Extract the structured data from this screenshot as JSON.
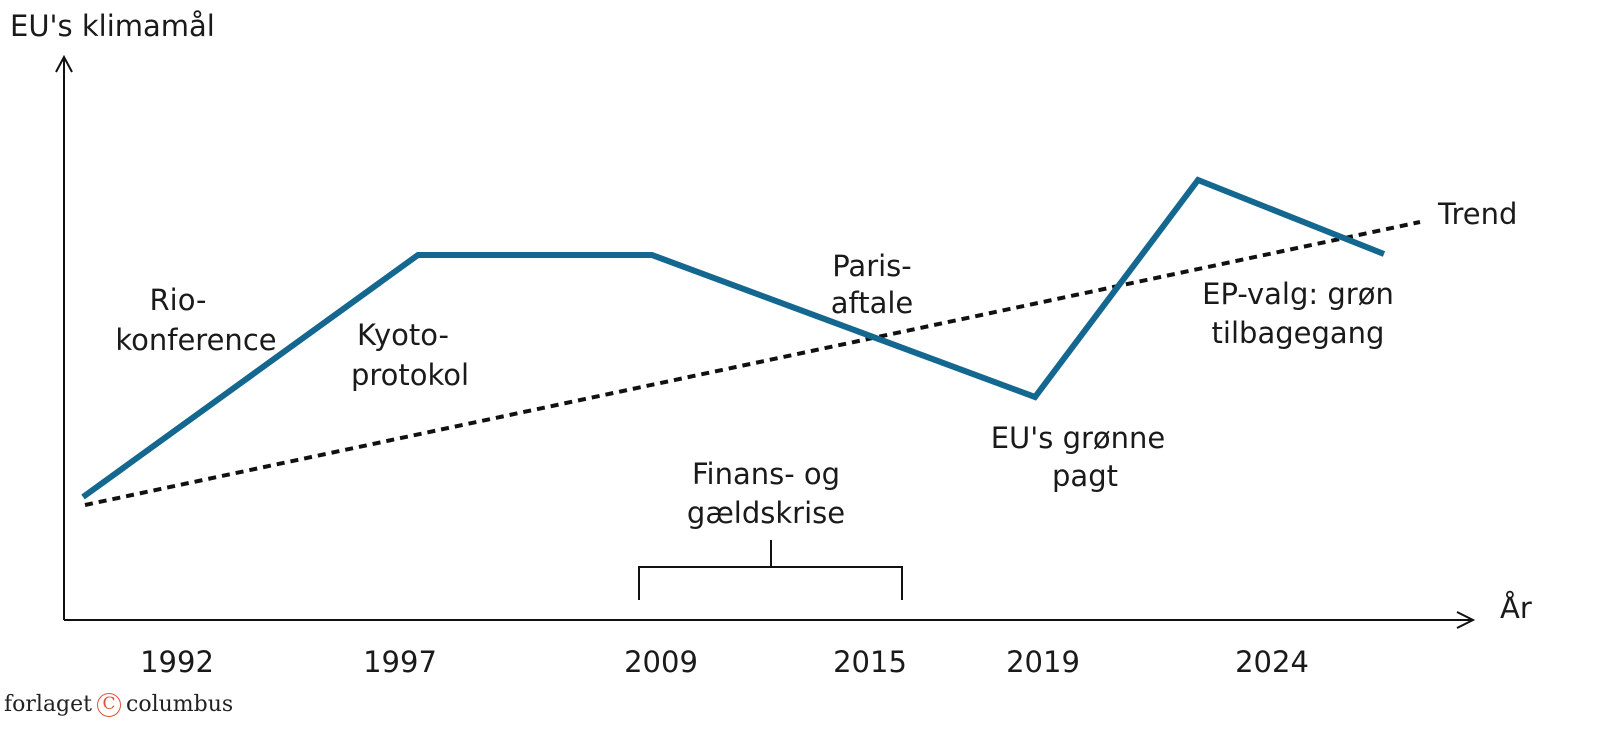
{
  "axes": {
    "y_label": "EU's klimamål",
    "x_label": "År"
  },
  "years": [
    "1992",
    "1997",
    "2009",
    "2015",
    "2019",
    "2024"
  ],
  "events": {
    "rio": [
      "Rio-",
      "konference"
    ],
    "kyoto": [
      "Kyoto-",
      "protokol"
    ],
    "paris": [
      "Paris-",
      "aftale"
    ],
    "green_deal": [
      "EU's grønne",
      "pagt"
    ],
    "ep_election": [
      "EP-valg: grøn",
      "tilbagegang"
    ],
    "crisis": [
      "Finans- og",
      "gældskrise"
    ]
  },
  "trend_label": "Trend",
  "logo": {
    "left": "forlaget",
    "mark": "C",
    "right": "columbus"
  },
  "colors": {
    "line": "#14678f",
    "trend": "#111111",
    "logo_mark": "#e0533a"
  }
}
